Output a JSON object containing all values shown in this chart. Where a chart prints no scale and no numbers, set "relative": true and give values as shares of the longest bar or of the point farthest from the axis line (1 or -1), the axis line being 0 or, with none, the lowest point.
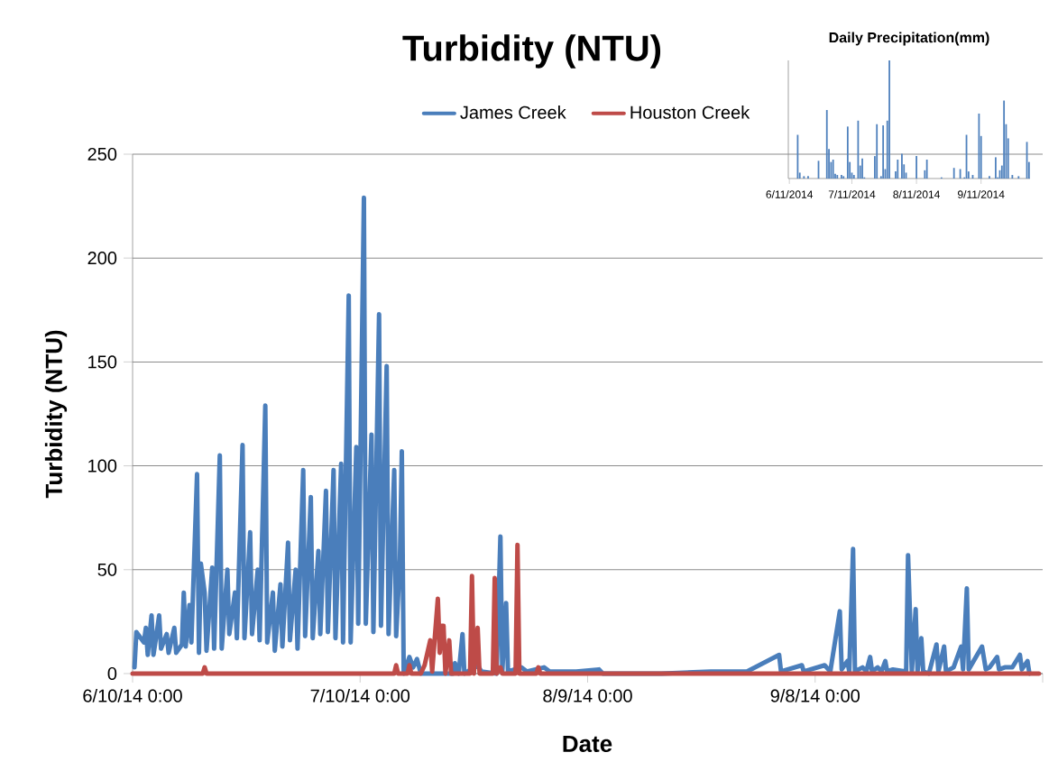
{
  "chart_data": [
    {
      "type": "line",
      "title": "Turbidity (NTU)",
      "xlabel": "Date",
      "ylabel": "Turbidity (NTU)",
      "xlim": [
        "2014-06-10",
        "2014-10-08"
      ],
      "ylim": [
        0,
        250
      ],
      "xticks": [
        {
          "value": "2014-06-10",
          "label": "6/10/14 0:00"
        },
        {
          "value": "2014-07-10",
          "label": "7/10/14 0:00"
        },
        {
          "value": "2014-08-09",
          "label": "8/9/14 0:00"
        },
        {
          "value": "2014-09-08",
          "label": "9/8/14 0:00"
        },
        {
          "value": "2014-10-08",
          "label": null
        }
      ],
      "yticks": [
        0,
        50,
        100,
        150,
        200,
        250
      ],
      "grid": "y",
      "legend": "top",
      "series": [
        {
          "name": "James Creek",
          "color": "#4a7ebb",
          "x": [
            "2014-06-10T06:00",
            "2014-06-10T12:00",
            "2014-06-11T12:00",
            "2014-06-11T18:00",
            "2014-06-12T00:00",
            "2014-06-12T12:00",
            "2014-06-12T18:00",
            "2014-06-13T00:00",
            "2014-06-13T12:00",
            "2014-06-13T18:00",
            "2014-06-14T12:00",
            "2014-06-14T18:00",
            "2014-06-15T12:00",
            "2014-06-15T18:00",
            "2014-06-16T12:00",
            "2014-06-16T18:00",
            "2014-06-17T00:00",
            "2014-06-17T12:00",
            "2014-06-17T18:00",
            "2014-06-18T12:00",
            "2014-06-18T18:00",
            "2014-06-19T00:00",
            "2014-06-19T12:00",
            "2014-06-19T18:00",
            "2014-06-20T12:00",
            "2014-06-20T18:00",
            "2014-06-21T12:00",
            "2014-06-21T18:00",
            "2014-06-22T12:00",
            "2014-06-22T18:00",
            "2014-06-23T12:00",
            "2014-06-23T18:00",
            "2014-06-24T12:00",
            "2014-06-24T18:00",
            "2014-06-25T12:00",
            "2014-06-25T18:00",
            "2014-06-26T12:00",
            "2014-06-26T18:00",
            "2014-06-27T12:00",
            "2014-06-27T18:00",
            "2014-06-28T12:00",
            "2014-06-28T18:00",
            "2014-06-29T12:00",
            "2014-06-29T18:00",
            "2014-06-30T12:00",
            "2014-06-30T18:00",
            "2014-07-01T12:00",
            "2014-07-01T18:00",
            "2014-07-02T12:00",
            "2014-07-02T18:00",
            "2014-07-03T12:00",
            "2014-07-03T18:00",
            "2014-07-04T12:00",
            "2014-07-04T18:00",
            "2014-07-05T12:00",
            "2014-07-05T18:00",
            "2014-07-06T12:00",
            "2014-07-06T18:00",
            "2014-07-07T12:00",
            "2014-07-07T18:00",
            "2014-07-08T12:00",
            "2014-07-08T18:00",
            "2014-07-09T12:00",
            "2014-07-09T18:00",
            "2014-07-10T12:00",
            "2014-07-10T18:00",
            "2014-07-11T12:00",
            "2014-07-11T18:00",
            "2014-07-12T12:00",
            "2014-07-12T18:00",
            "2014-07-13T12:00",
            "2014-07-13T18:00",
            "2014-07-14T12:00",
            "2014-07-14T18:00",
            "2014-07-15T06:00",
            "2014-07-15T12:00",
            "2014-07-15T18:00",
            "2014-07-16T12:00",
            "2014-07-17T00:00",
            "2014-07-17T12:00",
            "2014-07-18T00:00",
            "2014-07-22T06:00",
            "2014-07-22T12:00",
            "2014-07-23T00:00",
            "2014-07-23T12:00",
            "2014-07-23T18:00",
            "2014-07-25T12:00",
            "2014-07-26T00:00",
            "2014-07-28T00:00",
            "2014-07-28T12:00",
            "2014-07-28T18:00",
            "2014-07-29T06:00",
            "2014-07-29T12:00",
            "2014-07-31T06:00",
            "2014-08-01T00:00",
            "2014-08-03T06:00",
            "2014-08-04T00:00",
            "2014-08-05T12:00",
            "2014-08-07T12:00",
            "2014-08-10T12:00",
            "2014-08-11T00:00",
            "2014-08-18T18:00",
            "2014-08-25T06:00",
            "2014-08-26T06:00",
            "2014-08-30T00:00",
            "2014-09-03T06:00",
            "2014-09-03T12:00",
            "2014-09-06T06:00",
            "2014-09-06T12:00",
            "2014-09-09T06:00",
            "2014-09-10T00:00",
            "2014-09-11T06:00",
            "2014-09-11T12:00",
            "2014-09-12T06:00",
            "2014-09-12T12:00",
            "2014-09-13T00:00",
            "2014-09-13T06:00",
            "2014-09-14T06:00",
            "2014-09-14T18:00",
            "2014-09-15T06:00",
            "2014-09-15T12:00",
            "2014-09-16T06:00",
            "2014-09-16T18:00",
            "2014-09-17T06:00",
            "2014-09-17T12:00",
            "2014-09-18T06:00",
            "2014-09-20T00:00",
            "2014-09-20T06:00",
            "2014-09-20T18:00",
            "2014-09-21T06:00",
            "2014-09-21T12:00",
            "2014-09-22T00:00",
            "2014-09-22T06:00",
            "2014-09-23T00:00",
            "2014-09-24T00:00",
            "2014-09-24T06:00",
            "2014-09-25T00:00",
            "2014-09-25T06:00",
            "2014-09-26T06:00",
            "2014-09-27T06:00",
            "2014-09-27T12:00",
            "2014-09-28T00:00",
            "2014-09-28T06:00",
            "2014-09-30T00:00",
            "2014-09-30T12:00",
            "2014-10-01T00:00",
            "2014-10-02T00:00",
            "2014-10-02T06:00",
            "2014-10-03T00:00",
            "2014-10-04T00:00",
            "2014-10-05T00:00",
            "2014-10-05T06:00",
            "2014-10-06T00:00",
            "2014-10-06T06:00"
          ],
          "values": [
            3,
            20,
            15,
            22,
            9,
            28,
            9,
            15,
            28,
            12,
            19,
            10,
            22,
            10,
            14,
            39,
            13,
            33,
            15,
            96,
            10,
            53,
            39,
            11,
            51,
            12,
            105,
            12,
            50,
            19,
            39,
            17,
            110,
            17,
            68,
            19,
            50,
            16,
            129,
            15,
            39,
            11,
            43,
            13,
            63,
            16,
            50,
            12,
            98,
            18,
            85,
            17,
            59,
            19,
            88,
            20,
            98,
            17,
            101,
            15,
            182,
            15,
            109,
            24,
            229,
            24,
            115,
            20,
            173,
            23,
            148,
            19,
            98,
            18,
            55,
            107,
            0,
            8,
            3,
            7,
            0,
            0,
            5,
            0,
            19,
            0,
            4,
            1,
            0,
            66,
            1,
            34,
            1,
            3,
            1,
            3,
            1,
            1,
            1,
            2,
            0,
            0,
            1,
            1,
            1,
            9,
            1,
            4,
            1,
            4,
            1,
            30,
            2,
            6,
            1,
            60,
            1,
            3,
            1,
            8,
            1,
            3,
            1,
            6,
            1,
            2,
            1,
            57,
            1,
            31,
            1,
            17,
            1,
            0,
            14,
            1,
            13,
            1,
            3,
            13,
            2,
            41,
            2,
            13,
            2,
            3,
            8,
            2,
            3,
            3,
            9,
            2,
            6,
            0
          ]
        },
        {
          "name": "Houston Creek",
          "color": "#be4b48",
          "x": [
            "2014-06-10T00:00",
            "2014-06-19T06:00",
            "2014-06-19T12:00",
            "2014-06-19T18:00",
            "2014-07-14T12:00",
            "2014-07-14T18:00",
            "2014-07-15T00:00",
            "2014-07-16T06:00",
            "2014-07-16T12:00",
            "2014-07-16T18:00",
            "2014-07-18T00:00",
            "2014-07-18T12:00",
            "2014-07-19T06:00",
            "2014-07-19T12:00",
            "2014-07-20T06:00",
            "2014-07-20T12:00",
            "2014-07-20T18:00",
            "2014-07-21T00:00",
            "2014-07-21T06:00",
            "2014-07-21T18:00",
            "2014-07-22T00:00",
            "2014-07-24T12:00",
            "2014-07-24T18:00",
            "2014-07-25T00:00",
            "2014-07-25T12:00",
            "2014-07-25T18:00",
            "2014-07-27T12:00",
            "2014-07-27T18:00",
            "2014-07-28T00:00",
            "2014-07-28T12:00",
            "2014-07-28T18:00",
            "2014-07-30T12:00",
            "2014-07-30T18:00",
            "2014-07-31T00:00",
            "2014-08-02T06:00",
            "2014-08-02T12:00",
            "2014-08-02T18:00",
            "2014-10-07T12:00"
          ],
          "values": [
            0,
            0,
            3,
            0,
            0,
            4,
            0,
            0,
            4,
            0,
            0,
            4,
            16,
            1,
            36,
            10,
            23,
            23,
            0,
            16,
            0,
            0,
            47,
            0,
            22,
            0,
            0,
            46,
            0,
            3,
            0,
            0,
            62,
            0,
            0,
            3,
            0,
            0
          ]
        }
      ]
    },
    {
      "type": "bar",
      "title": "Daily Precipitation(mm)",
      "relative": true,
      "color": "#4f81bd",
      "categories": [
        "6/11/2014",
        null,
        null,
        null,
        null,
        null,
        null,
        null,
        null,
        null,
        null,
        null,
        null,
        null,
        null,
        null,
        null,
        null,
        null,
        null,
        null,
        null,
        null,
        null,
        null,
        null,
        null,
        null,
        null,
        null,
        "7/11/2014",
        null,
        null,
        null,
        null,
        null,
        null,
        null,
        null,
        null,
        null,
        null,
        null,
        null,
        null,
        null,
        null,
        null,
        null,
        null,
        null,
        null,
        null,
        null,
        null,
        null,
        null,
        null,
        null,
        null,
        null,
        "8/11/2014",
        null,
        null,
        null,
        null,
        null,
        null,
        null,
        null,
        null,
        null,
        null,
        null,
        null,
        null,
        null,
        null,
        null,
        null,
        null,
        null,
        null,
        null,
        null,
        null,
        null,
        null,
        null,
        null,
        null,
        null,
        "9/11/2014",
        null,
        null,
        null,
        null,
        null,
        null,
        null,
        null,
        null,
        null,
        null,
        null,
        null,
        null,
        null,
        null,
        null,
        null,
        null,
        null,
        null,
        null,
        null
      ],
      "values": [
        0,
        0,
        0,
        0,
        0.37,
        0.05,
        0,
        0.02,
        0,
        0.02,
        0,
        0,
        0,
        0,
        0.15,
        0,
        0,
        0,
        0.58,
        0.25,
        0.14,
        0.16,
        0.04,
        0.03,
        0,
        0.03,
        0.02,
        0,
        0.44,
        0.14,
        0.05,
        0.03,
        0,
        0.49,
        0.11,
        0.17,
        0.01,
        0,
        0,
        0,
        0,
        0.19,
        0.46,
        0,
        0.02,
        0.45,
        0.08,
        0.49,
        1,
        0,
        0,
        0.06,
        0.16,
        0,
        0.21,
        0.12,
        0.05,
        0,
        0,
        0,
        0,
        0.19,
        0,
        0,
        0,
        0.07,
        0.16,
        0,
        0,
        0,
        0,
        0,
        0,
        0.01,
        0,
        0,
        0,
        0,
        0,
        0.09,
        0,
        0,
        0.08,
        0,
        0.01,
        0.37,
        0.06,
        0,
        0.03,
        0,
        0,
        0.55,
        0.36,
        0,
        0,
        0,
        0.02,
        0,
        0,
        0.18,
        0.01,
        0.07,
        0.11,
        0.66,
        0.46,
        0.34,
        0,
        0.03,
        0,
        0,
        0.02,
        0,
        0,
        0,
        0.31,
        0.14
      ]
    }
  ]
}
